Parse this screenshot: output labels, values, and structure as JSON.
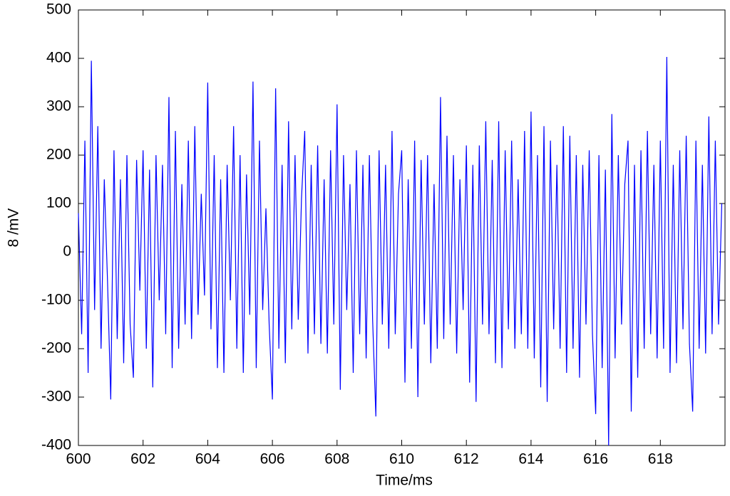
{
  "chart_data": {
    "type": "line",
    "xlabel": "Time/ms",
    "ylabel": "8 /mV",
    "color": "#0000ff",
    "x": [
      600.0,
      600.1,
      600.2,
      600.3,
      600.4,
      600.5,
      600.6,
      600.7,
      600.8,
      600.9,
      601.0,
      601.1,
      601.2,
      601.3,
      601.4,
      601.5,
      601.6,
      601.7,
      601.8,
      601.9,
      602.0,
      602.1,
      602.2,
      602.3,
      602.4,
      602.5,
      602.6,
      602.7,
      602.8,
      602.9,
      603.0,
      603.1,
      603.2,
      603.3,
      603.4,
      603.5,
      603.6,
      603.7,
      603.8,
      603.9,
      604.0,
      604.1,
      604.2,
      604.3,
      604.4,
      604.5,
      604.6,
      604.7,
      604.8,
      604.9,
      605.0,
      605.1,
      605.2,
      605.3,
      605.4,
      605.5,
      605.6,
      605.7,
      605.8,
      605.9,
      606.0,
      606.1,
      606.2,
      606.3,
      606.4,
      606.5,
      606.6,
      606.7,
      606.8,
      606.9,
      607.0,
      607.1,
      607.2,
      607.3,
      607.4,
      607.5,
      607.6,
      607.7,
      607.8,
      607.9,
      608.0,
      608.1,
      608.2,
      608.3,
      608.4,
      608.5,
      608.6,
      608.7,
      608.8,
      608.9,
      609.0,
      609.1,
      609.2,
      609.3,
      609.4,
      609.5,
      609.6,
      609.7,
      609.8,
      609.9,
      610.0,
      610.1,
      610.2,
      610.3,
      610.4,
      610.5,
      610.6,
      610.7,
      610.8,
      610.9,
      611.0,
      611.1,
      611.2,
      611.3,
      611.4,
      611.5,
      611.6,
      611.7,
      611.8,
      611.9,
      612.0,
      612.1,
      612.2,
      612.3,
      612.4,
      612.5,
      612.6,
      612.7,
      612.8,
      612.9,
      613.0,
      613.1,
      613.2,
      613.3,
      613.4,
      613.5,
      613.6,
      613.7,
      613.8,
      613.9,
      614.0,
      614.1,
      614.2,
      614.3,
      614.4,
      614.5,
      614.6,
      614.7,
      614.8,
      614.9,
      615.0,
      615.1,
      615.2,
      615.3,
      615.4,
      615.5,
      615.6,
      615.7,
      615.8,
      615.9,
      616.0,
      616.1,
      616.2,
      616.3,
      616.4,
      616.5,
      616.6,
      616.7,
      616.8,
      616.9,
      617.0,
      617.1,
      617.2,
      617.3,
      617.4,
      617.5,
      617.6,
      617.7,
      617.8,
      617.9,
      618.0,
      618.1,
      618.2,
      618.3,
      618.4,
      618.5,
      618.6,
      618.7,
      618.8,
      618.9,
      619.0,
      619.1,
      619.2,
      619.3,
      619.4,
      619.5,
      619.6,
      619.7,
      619.8,
      619.9
    ],
    "values": [
      80,
      -170,
      230,
      -250,
      395,
      -120,
      260,
      -200,
      150,
      -60,
      -305,
      210,
      -180,
      150,
      -230,
      200,
      -150,
      -260,
      190,
      -80,
      210,
      -200,
      170,
      -280,
      200,
      -100,
      180,
      -170,
      320,
      -240,
      250,
      -200,
      140,
      -150,
      230,
      -180,
      260,
      -130,
      120,
      -90,
      350,
      -160,
      200,
      -240,
      150,
      -250,
      180,
      -100,
      260,
      -200,
      200,
      -250,
      160,
      -130,
      352,
      -240,
      230,
      -120,
      90,
      -150,
      -305,
      338,
      -200,
      180,
      -230,
      270,
      -160,
      200,
      -140,
      110,
      250,
      -210,
      180,
      -170,
      220,
      -190,
      150,
      -210,
      210,
      -150,
      305,
      -285,
      200,
      -120,
      140,
      -250,
      210,
      -170,
      180,
      -220,
      200,
      -140,
      -340,
      210,
      -150,
      180,
      -200,
      250,
      -170,
      120,
      210,
      -270,
      150,
      -200,
      230,
      -300,
      190,
      -150,
      200,
      -230,
      140,
      -200,
      320,
      -180,
      240,
      -150,
      200,
      -210,
      150,
      -120,
      220,
      -270,
      180,
      -310,
      220,
      -150,
      270,
      -170,
      190,
      -230,
      270,
      -240,
      210,
      -160,
      230,
      -200,
      150,
      -170,
      250,
      -200,
      290,
      -220,
      200,
      -280,
      260,
      -310,
      230,
      -160,
      180,
      -200,
      260,
      -250,
      240,
      -200,
      200,
      -260,
      180,
      -150,
      210,
      -170,
      -335,
      200,
      -240,
      170,
      -400,
      285,
      -220,
      200,
      -150,
      140,
      230,
      -330,
      180,
      -260,
      210,
      -200,
      250,
      -170,
      180,
      -220,
      230,
      -200,
      403,
      -250,
      180,
      -230,
      210,
      -160,
      240,
      -190,
      -330,
      230,
      -200,
      180,
      -210,
      280,
      -170,
      230,
      -150,
      100
    ],
    "xlim": [
      600,
      620
    ],
    "ylim": [
      -400,
      500
    ],
    "xticks": [
      600,
      602,
      604,
      606,
      608,
      610,
      612,
      614,
      616,
      618
    ],
    "yticks": [
      -400,
      -300,
      -200,
      -100,
      0,
      100,
      200,
      300,
      400,
      500
    ]
  }
}
